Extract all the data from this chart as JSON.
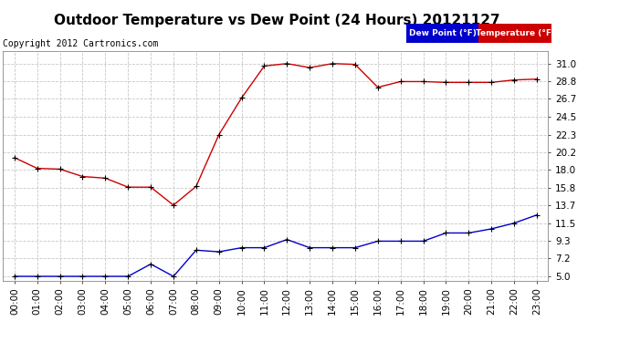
{
  "title": "Outdoor Temperature vs Dew Point (24 Hours) 20121127",
  "copyright": "Copyright 2012 Cartronics.com",
  "background_color": "#ffffff",
  "plot_bg_color": "#ffffff",
  "grid_color": "#c8c8c8",
  "hours": [
    0,
    1,
    2,
    3,
    4,
    5,
    6,
    7,
    8,
    9,
    10,
    11,
    12,
    13,
    14,
    15,
    16,
    17,
    18,
    19,
    20,
    21,
    22,
    23
  ],
  "temp_F": [
    19.5,
    18.2,
    18.1,
    17.2,
    17.0,
    15.9,
    15.9,
    13.7,
    16.0,
    22.3,
    26.8,
    30.7,
    31.0,
    30.5,
    31.0,
    30.9,
    28.1,
    28.8,
    28.8,
    28.7,
    28.7,
    28.7,
    29.0,
    29.1
  ],
  "dew_F": [
    5.0,
    5.0,
    5.0,
    5.0,
    5.0,
    5.0,
    6.5,
    5.0,
    8.2,
    8.0,
    8.5,
    8.5,
    9.5,
    8.5,
    8.5,
    8.5,
    9.3,
    9.3,
    9.3,
    10.3,
    10.3,
    10.8,
    11.5,
    12.5
  ],
  "yticks": [
    5.0,
    7.2,
    9.3,
    11.5,
    13.7,
    15.8,
    18.0,
    20.2,
    22.3,
    24.5,
    26.7,
    28.8,
    31.0
  ],
  "temp_color": "#cc0000",
  "dew_color": "#0000cc",
  "marker_color": "#000000",
  "legend_dew_bg": "#0000cc",
  "legend_temp_bg": "#cc0000",
  "legend_text_color": "#ffffff",
  "title_fontsize": 11,
  "tick_fontsize": 7.5,
  "copyright_fontsize": 7,
  "ylim": [
    4.5,
    32.5
  ],
  "xlim": [
    -0.5,
    23.5
  ]
}
